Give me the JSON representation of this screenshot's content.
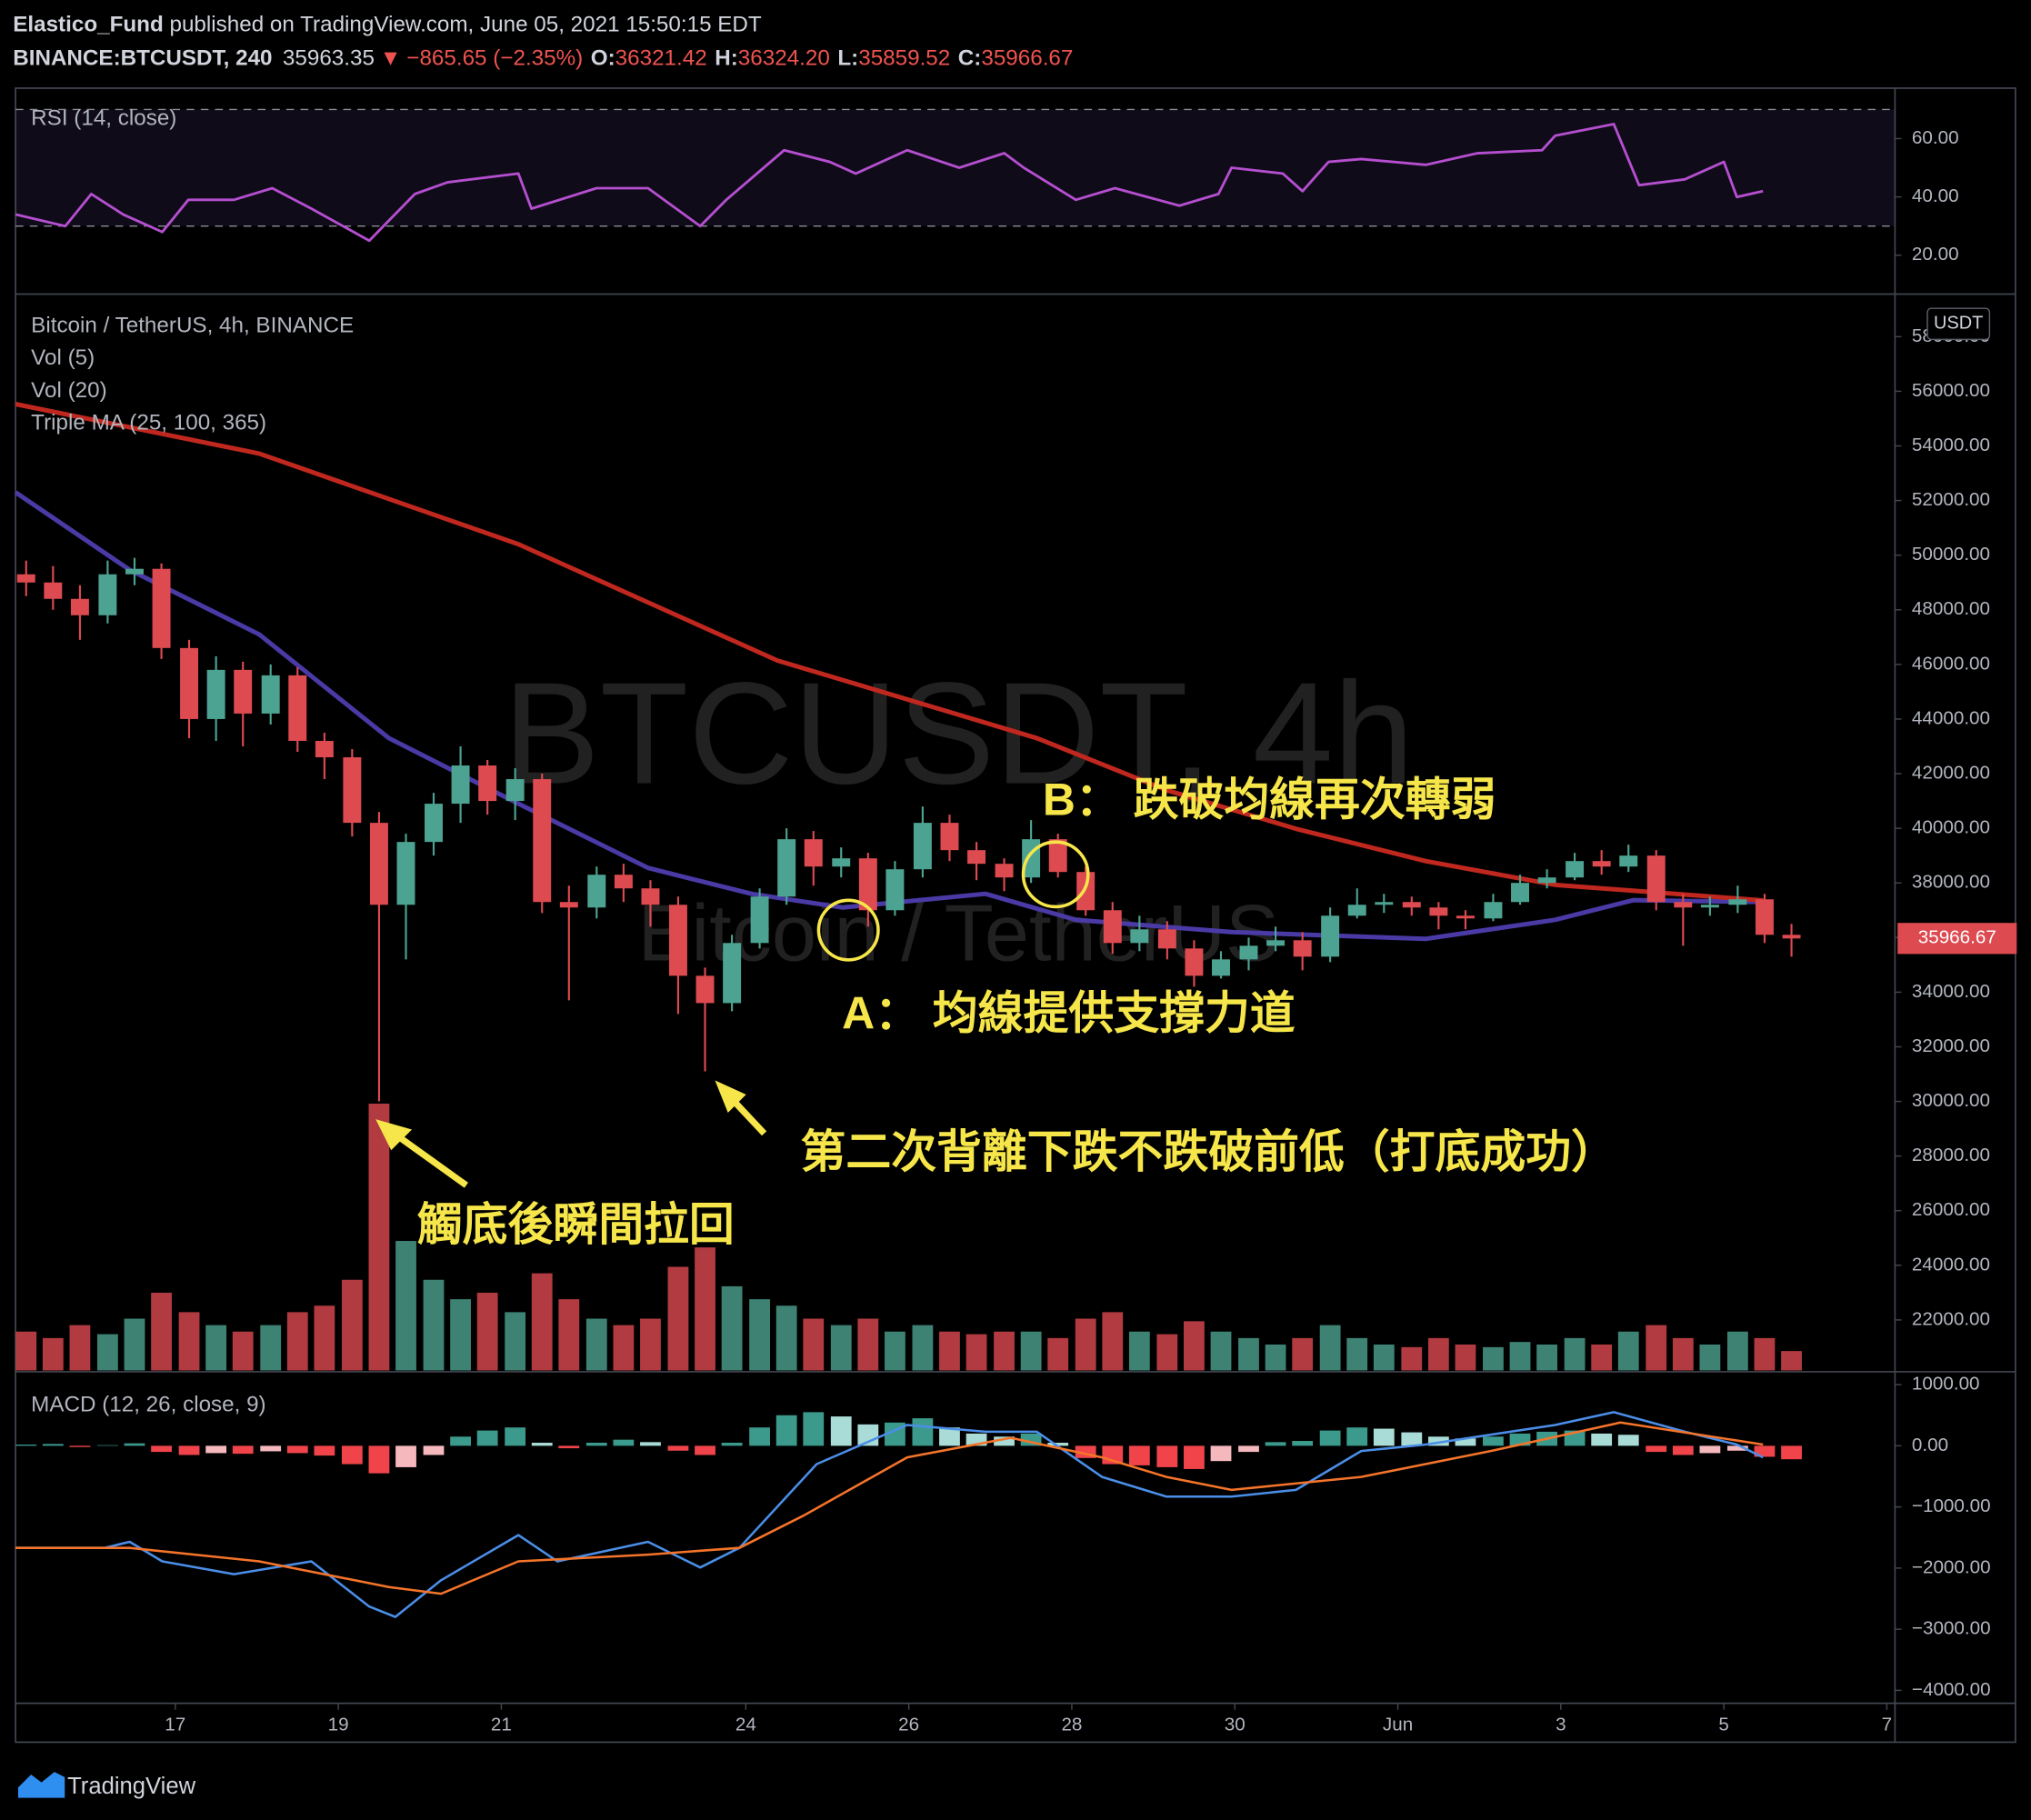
{
  "header": {
    "author": "Elastico_Fund",
    "published": " published on TradingView.com, June 05, 2021 15:50:15 EDT",
    "symbol": "BINANCE:BTCUSDT, 240",
    "price": "35963.35",
    "arrow": "▼",
    "change": "−865.65 (−2.35%)",
    "ohlc": [
      {
        "label": "O:",
        "value": "36321.42"
      },
      {
        "label": "H:",
        "value": "36324.20"
      },
      {
        "label": "L:",
        "value": "35859.52"
      },
      {
        "label": "C:",
        "value": "35966.67"
      }
    ]
  },
  "annotations": [
    "B： 跌破均線再次轉弱",
    "A： 均線提供支撐力道",
    "第二次背離下跌不跌破前低（打底成功）",
    "觸底後瞬間拉回"
  ],
  "footer": "TradingView",
  "chart_data": [
    {
      "type": "line",
      "legend": "RSI (14, close)",
      "color": "#b54fd0",
      "band_color": "#7e57c2",
      "levels": [
        30,
        70
      ],
      "ylim": [
        7.1,
        77.3
      ],
      "yticks": [
        {
          "value": 20,
          "label": "20.00"
        },
        {
          "value": 40,
          "label": "40.00"
        },
        {
          "value": 60,
          "label": "60.00"
        }
      ],
      "x": [
        15.04,
        15.65,
        15.97,
        16.36,
        16.84,
        17.16,
        17.72,
        18.19,
        18.67,
        19.38,
        19.94,
        20.34,
        21.21,
        21.37,
        22.17,
        22.8,
        23.44,
        23.76,
        24.47,
        25.03,
        25.35,
        25.98,
        26.62,
        27.17,
        27.41,
        28.05,
        28.53,
        29.32,
        29.8,
        29.96,
        30.59,
        30.83,
        31.15,
        31.55,
        32.34,
        32.98,
        33.77,
        33.93,
        34.65,
        34.96,
        35.52,
        36,
        36.16,
        36.48
      ],
      "values": [
        34,
        30,
        41,
        34,
        28,
        39,
        39,
        43,
        36,
        25,
        41,
        45,
        48,
        36,
        43,
        43,
        30,
        39,
        56,
        52,
        48,
        56,
        50,
        55,
        50,
        39,
        43,
        37,
        41,
        50,
        48,
        42,
        52,
        53,
        51,
        55,
        56,
        61,
        65,
        44,
        46,
        52,
        40,
        42
      ]
    },
    {
      "type": "candlestick",
      "title": "Bitcoin / TetherUS, 4h, BINANCE",
      "indicators": [
        "Vol (5)",
        "Vol (20)",
        "Triple MA (25, 100, 365)"
      ],
      "watermark": "BTCUSDT, 4h",
      "watermark_sub": "Bitcoin / TetherUS",
      "currency": "USDT",
      "last_price": {
        "value": 35966.67,
        "label": "35966.67"
      },
      "up_color": "#4da391",
      "down_color": "#dd4a50",
      "ylim": [
        20150,
        59510
      ],
      "yticks": [
        {
          "value": 22000,
          "label": "22000.00"
        },
        {
          "value": 24000,
          "label": "24000.00"
        },
        {
          "value": 26000,
          "label": "26000.00"
        },
        {
          "value": 28000,
          "label": "28000.00"
        },
        {
          "value": 30000,
          "label": "30000.00"
        },
        {
          "value": 32000,
          "label": "32000.00"
        },
        {
          "value": 34000,
          "label": "34000.00"
        },
        {
          "value": 36000,
          "label": "36000.00"
        },
        {
          "value": 38000,
          "label": "38000.00"
        },
        {
          "value": 40000,
          "label": "40000.00"
        },
        {
          "value": 42000,
          "label": "42000.00"
        },
        {
          "value": 44000,
          "label": "44000.00"
        },
        {
          "value": 46000,
          "label": "46000.00"
        },
        {
          "value": 48000,
          "label": "48000.00"
        },
        {
          "value": 50000,
          "label": "50000.00"
        },
        {
          "value": 52000,
          "label": "52000.00"
        },
        {
          "value": 54000,
          "label": "54000.00"
        },
        {
          "value": 56000,
          "label": "56000.00"
        },
        {
          "value": 58000,
          "label": "58000.00"
        }
      ],
      "x": [
        15.17,
        15.5,
        15.83,
        16.17,
        16.5,
        16.83,
        17.17,
        17.5,
        17.83,
        18.17,
        18.5,
        18.83,
        19.17,
        19.5,
        19.83,
        20.17,
        20.5,
        20.83,
        21.17,
        21.5,
        21.83,
        22.17,
        22.5,
        22.83,
        23.17,
        23.5,
        23.83,
        24.17,
        24.5,
        24.83,
        25.17,
        25.5,
        25.83,
        26.17,
        26.5,
        26.83,
        27.17,
        27.5,
        27.83,
        28.17,
        28.5,
        28.83,
        29.17,
        29.5,
        29.83,
        30.17,
        30.5,
        30.83,
        31.17,
        31.5,
        31.83,
        32.17,
        32.5,
        32.83,
        33.17,
        33.5,
        33.83,
        34.17,
        34.5,
        34.83,
        35.17,
        35.5,
        35.83,
        36.17,
        36.5,
        36.83
      ],
      "open": [
        49300,
        49000,
        48400,
        47800,
        49300,
        49500,
        46600,
        44000,
        45800,
        44200,
        45600,
        43200,
        42600,
        40200,
        37200,
        39500,
        40900,
        42300,
        41000,
        41800,
        37300,
        37100,
        38300,
        37800,
        37200,
        34600,
        33600,
        35800,
        37500,
        39600,
        38600,
        38900,
        37000,
        38500,
        40200,
        39200,
        38700,
        38200,
        39600,
        38400,
        37000,
        35800,
        36300,
        35600,
        34600,
        35200,
        35700,
        35900,
        35300,
        36800,
        37200,
        37300,
        37100,
        36800,
        36700,
        37300,
        38000,
        38200,
        38800,
        38600,
        39000,
        37300,
        37100,
        37200,
        37400,
        36100
      ],
      "high": [
        49800,
        49600,
        48900,
        49800,
        49900,
        49700,
        46900,
        46300,
        46100,
        46000,
        45900,
        43500,
        42900,
        40600,
        39800,
        41300,
        43000,
        42500,
        42200,
        42000,
        37900,
        38600,
        38700,
        38100,
        37500,
        34900,
        36100,
        37800,
        40000,
        39900,
        39300,
        39100,
        38800,
        40800,
        40500,
        39500,
        38900,
        40300,
        39800,
        38600,
        37300,
        36800,
        36600,
        35900,
        35500,
        36000,
        36400,
        36200,
        37100,
        37800,
        37600,
        37500,
        37300,
        37000,
        37600,
        38300,
        38500,
        39100,
        39200,
        39400,
        39200,
        37600,
        37500,
        37900,
        37600,
        36500
      ],
      "low": [
        48500,
        48000,
        46900,
        47500,
        48900,
        46200,
        43300,
        43200,
        43000,
        43800,
        42800,
        41800,
        39700,
        30000,
        35200,
        39000,
        40200,
        40500,
        40300,
        36900,
        33700,
        36700,
        37300,
        36400,
        33200,
        31100,
        33300,
        35600,
        37200,
        37900,
        38200,
        36400,
        36800,
        38200,
        38800,
        38100,
        37700,
        38000,
        38200,
        36800,
        35400,
        35500,
        35200,
        34200,
        34500,
        34800,
        35500,
        34800,
        35100,
        36700,
        36900,
        36800,
        36300,
        36300,
        36600,
        37200,
        37800,
        38100,
        38300,
        38400,
        37000,
        35700,
        36800,
        36900,
        35800,
        35300
      ],
      "close": [
        49000,
        48400,
        47800,
        49300,
        49500,
        46600,
        44000,
        45800,
        44200,
        45600,
        43200,
        42600,
        40200,
        37200,
        39500,
        40900,
        42300,
        41000,
        41800,
        37300,
        37100,
        38300,
        37800,
        37200,
        34600,
        33600,
        35800,
        37500,
        39600,
        38600,
        38900,
        37000,
        38500,
        40200,
        39200,
        38700,
        38200,
        39600,
        38400,
        37000,
        35800,
        36300,
        35600,
        34600,
        35200,
        35700,
        35900,
        35300,
        36800,
        37200,
        37300,
        37100,
        36800,
        36700,
        37300,
        38000,
        38200,
        38800,
        38600,
        39000,
        37300,
        37100,
        37200,
        37400,
        36100,
        35966.67
      ],
      "volume": [
        30,
        25,
        35,
        28,
        40,
        60,
        45,
        35,
        30,
        35,
        45,
        50,
        70,
        206,
        100,
        70,
        55,
        60,
        45,
        75,
        55,
        40,
        35,
        40,
        80,
        95,
        65,
        55,
        50,
        40,
        35,
        40,
        30,
        35,
        30,
        28,
        30,
        30,
        25,
        40,
        45,
        30,
        28,
        38,
        30,
        25,
        20,
        25,
        35,
        25,
        20,
        18,
        25,
        20,
        18,
        22,
        20,
        25,
        20,
        30,
        35,
        25,
        20,
        30,
        25,
        15
      ],
      "ma": [
        {
          "color": "#4a3aa6",
          "x": [
            15.04,
            16.44,
            18.03,
            19.62,
            21.21,
            22.8,
            24.07,
            25.19,
            26.94,
            28.05,
            29.96,
            32.34,
            33.93,
            34.89,
            36.48
          ],
          "values": [
            52300,
            49460,
            47100,
            43300,
            40900,
            38550,
            37600,
            37100,
            37600,
            36650,
            36200,
            35950,
            36650,
            37370,
            37300
          ]
        },
        {
          "color": "#c0281f",
          "x": [
            15.04,
            18.03,
            21.21,
            24.39,
            27.57,
            29.16,
            30.75,
            32.34,
            33.93,
            36.48
          ],
          "values": [
            55530,
            53720,
            50400,
            46140,
            43300,
            41400,
            39980,
            38800,
            37930,
            37360
          ]
        }
      ]
    },
    {
      "type": "macd",
      "legend": "MACD (12, 26, close, 9)",
      "ylim": [
        -4212,
        1190
      ],
      "yticks": [
        {
          "value": 1000,
          "label": "1000.00"
        },
        {
          "value": 0,
          "label": "0.00"
        },
        {
          "value": -1000,
          "label": "−1000.00"
        },
        {
          "value": -2000,
          "label": "−2000.00"
        },
        {
          "value": -3000,
          "label": "−3000.00"
        },
        {
          "value": -4000,
          "label": "−4000.00"
        }
      ],
      "xlim": [
        15.04,
        38.1
      ],
      "xticks": [
        17,
        19,
        21,
        24,
        26,
        28,
        30,
        {
          "value": 32,
          "label": "Jun"
        },
        {
          "value": 34,
          "label": "3"
        },
        {
          "value": 36,
          "label": "5"
        },
        {
          "value": 38,
          "label": "7"
        }
      ],
      "series": [
        {
          "color": "#4b8ee8",
          "x": [
            15.04,
            16.13,
            16.44,
            16.84,
            17.72,
            18.67,
            19.38,
            19.7,
            20.26,
            21.21,
            21.69,
            22.8,
            23.44,
            23.92,
            24.87,
            25.98,
            26.94,
            27.57,
            28.37,
            29.16,
            29.96,
            30.75,
            31.55,
            32.34,
            33.93,
            34.65,
            35.52,
            36.16,
            36.48
          ],
          "values": [
            -1670,
            -1670,
            -1570,
            -1890,
            -2100,
            -1890,
            -2630,
            -2800,
            -2200,
            -1460,
            -1890,
            -1570,
            -1990,
            -1670,
            -300,
            340,
            230,
            230,
            -510,
            -830,
            -830,
            -720,
            -85,
            20,
            340,
            550,
            230,
            20,
            -190
          ]
        },
        {
          "color": "#f5742a",
          "x": [
            15.04,
            16.44,
            18.03,
            19.62,
            20.26,
            21.21,
            22.8,
            23.92,
            24.71,
            25.98,
            27.25,
            28.37,
            29.16,
            29.96,
            31.55,
            33.14,
            34.73,
            36.48
          ],
          "values": [
            -1670,
            -1670,
            -1890,
            -2310,
            -2420,
            -1890,
            -1780,
            -1670,
            -1140,
            -190,
            130,
            -190,
            -510,
            -720,
            -510,
            -85,
            380,
            20
          ]
        }
      ],
      "histogram_colors": [
        "#3c9a8c",
        "#a9dcd6",
        "#f0444a",
        "#f5b8bd"
      ],
      "histogram": [
        20,
        30,
        -20,
        10,
        40,
        -100,
        -150,
        -120,
        -130,
        -90,
        -120,
        -160,
        -300,
        -450,
        -350,
        -150,
        150,
        250,
        300,
        50,
        -40,
        50,
        100,
        60,
        -80,
        -150,
        50,
        300,
        500,
        550,
        480,
        350,
        380,
        450,
        300,
        200,
        150,
        200,
        50,
        -200,
        -300,
        -320,
        -350,
        -380,
        -250,
        -100,
        60,
        80,
        250,
        300,
        280,
        220,
        150,
        120,
        150,
        200,
        230,
        250,
        200,
        180,
        -100,
        -150,
        -120,
        -80,
        -180,
        -220
      ]
    }
  ]
}
